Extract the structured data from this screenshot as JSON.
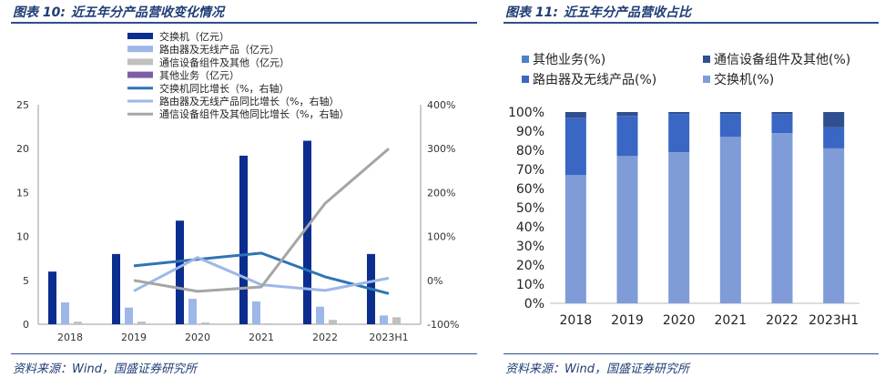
{
  "left": {
    "title_label": "图表 10:",
    "title_text": "近五年分产品营收变化情况",
    "source": "资料来源：Wind，国盛证券研究所"
  },
  "right": {
    "title_label": "图表 11:",
    "title_text": "近五年分产品营收占比",
    "source": "资料来源：Wind，国盛证券研究所"
  },
  "colors": {
    "title": "#1f3c75",
    "switch_bar": "#0b2d8f",
    "router_bar": "#9db7e8",
    "other_bar": "#c0c0c0",
    "misc_bar": "#7b5ea7",
    "switch_line": "#2e74b5",
    "router_line": "#9db7e8",
    "other_line": "#a5a5a5",
    "stack_misc": "#4a83c8",
    "stack_other": "#2f4f8f",
    "stack_router": "#3a66c4",
    "stack_switch": "#7f9cd9"
  },
  "chart_data": [
    {
      "type": "bar",
      "title": "近五年分产品营收变化情况",
      "categories": [
        "2018",
        "2019",
        "2020",
        "2021",
        "2022",
        "2023H1"
      ],
      "ylim": [
        0,
        25
      ],
      "yticks": [
        "0",
        "5",
        "10",
        "15",
        "20",
        "25"
      ],
      "y2lim": [
        -100,
        400
      ],
      "y2ticks": [
        "-100%",
        "0%",
        "100%",
        "200%",
        "300%",
        "400%"
      ],
      "legend": [
        "交换机（亿元）",
        "路由器及无线产品（亿元）",
        "通信设备组件及其他（亿元）",
        "其他业务（亿元）",
        "交换机同比增长（%，右轴）",
        "路由器及无线产品同比增长（%，右轴）",
        "通信设备组件及其他同比增长（%，右轴）"
      ],
      "series": [
        {
          "name": "交换机（亿元）",
          "type": "bar",
          "values": [
            6.0,
            8.0,
            11.8,
            19.2,
            20.9,
            8.0
          ]
        },
        {
          "name": "路由器及无线产品（亿元）",
          "type": "bar",
          "values": [
            2.5,
            1.9,
            2.9,
            2.6,
            2.0,
            1.0
          ]
        },
        {
          "name": "通信设备组件及其他（亿元）",
          "type": "bar",
          "values": [
            0.3,
            0.3,
            0.2,
            0.1,
            0.5,
            0.8
          ]
        },
        {
          "name": "其他业务（亿元）",
          "type": "bar",
          "values": [
            0,
            0,
            0,
            0,
            0,
            0
          ]
        },
        {
          "name": "交换机同比增长（%，右轴）",
          "type": "line",
          "values": [
            null,
            33,
            48,
            62,
            8,
            -30
          ]
        },
        {
          "name": "路由器及无线产品同比增长（%，右轴）",
          "type": "line",
          "values": [
            null,
            -24,
            52,
            -10,
            -23,
            5
          ]
        },
        {
          "name": "通信设备组件及其他同比增长（%，右轴）",
          "type": "line",
          "values": [
            null,
            0,
            -25,
            -15,
            175,
            300
          ]
        }
      ]
    },
    {
      "type": "bar",
      "stacked": true,
      "title": "近五年分产品营收占比",
      "categories": [
        "2018",
        "2019",
        "2020",
        "2021",
        "2022",
        "2023H1"
      ],
      "ylim": [
        0,
        100
      ],
      "yticks": [
        "0%",
        "10%",
        "20%",
        "30%",
        "40%",
        "50%",
        "60%",
        "70%",
        "80%",
        "90%",
        "100%"
      ],
      "legend": [
        "其他业务(%)",
        "通信设备组件及其他(%)",
        "路由器及无线产品(%)",
        "交换机(%)"
      ],
      "series": [
        {
          "name": "交换机(%)",
          "values": [
            67,
            77,
            79,
            87,
            89,
            81
          ]
        },
        {
          "name": "路由器及无线产品(%)",
          "values": [
            30,
            21,
            20,
            12,
            10,
            11
          ]
        },
        {
          "name": "通信设备组件及其他(%)",
          "values": [
            3,
            2,
            1,
            1,
            1,
            8
          ]
        },
        {
          "name": "其他业务(%)",
          "values": [
            0,
            0,
            0,
            0,
            0,
            0
          ]
        }
      ]
    }
  ]
}
